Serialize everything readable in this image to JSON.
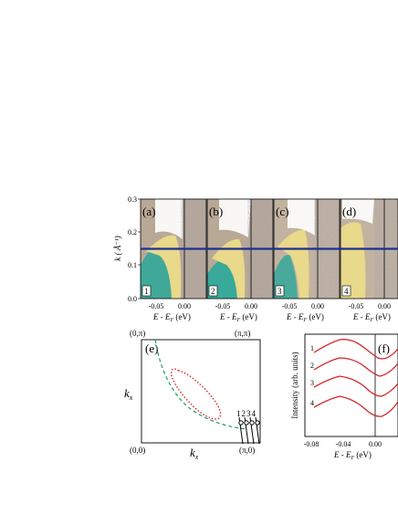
{
  "figure": {
    "panels_top": [
      {
        "letter": "(a)",
        "num": "1"
      },
      {
        "letter": "(b)",
        "num": "2"
      },
      {
        "letter": "(c)",
        "num": "3"
      },
      {
        "letter": "(d)",
        "num": "4"
      }
    ],
    "top_y_axis": {
      "label": "k ( Å⁻¹)",
      "ticks": [
        "0.3",
        "0.2",
        "0.1",
        "0.0"
      ]
    },
    "top_x_ticks": [
      "-0.05",
      "0.00"
    ],
    "top_x_label": "E - E",
    "top_x_label_sub": "F",
    "top_x_label_unit": " (eV)",
    "cut_line_k": 0.15,
    "cut_line_color": "#1f2f8f",
    "panel_e": {
      "letter": "(e)",
      "corner_tl": "(0,π)",
      "corner_tr": "(π,π)",
      "corner_bl": "(0,0)",
      "corner_br": "(π,0)",
      "ylabel": "k",
      "ylabel_sub": "x",
      "xlabel": "k",
      "xlabel_sub": "x",
      "cut_numbers": "1234",
      "fermi_color": "#1b9e5a",
      "pocket_color": "#d62728"
    },
    "panel_f": {
      "letter": "(f)",
      "ylabel": "Intensity (arb. units)",
      "x_ticks": [
        "-0.08",
        "-0.04",
        "0.00"
      ],
      "xlabel": "E - E",
      "xlabel_sub": "F",
      "xlabel_unit": " (eV)",
      "curve_labels": [
        "1",
        "2",
        "3",
        "4"
      ],
      "curve_color": "#d62728"
    }
  }
}
